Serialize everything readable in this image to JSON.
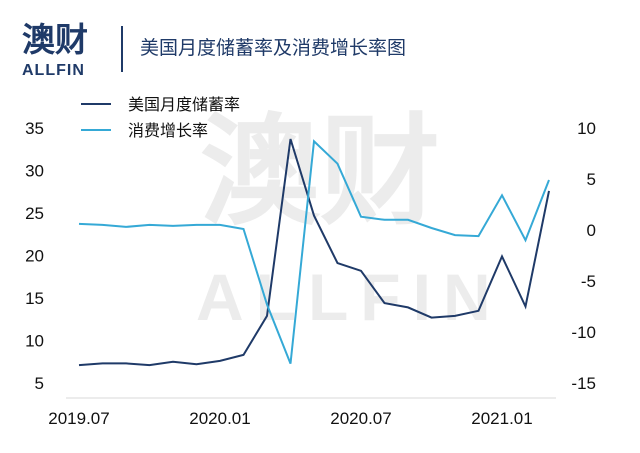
{
  "header": {
    "logo_cn": "澳财",
    "logo_en": "ALLFIN",
    "title": "美国月度储蓄率及消费增长率图"
  },
  "watermark": {
    "cn": "澳财",
    "en": "ALLFIN"
  },
  "colors": {
    "brand": "#1f3a68",
    "savings": "#1f3a68",
    "consumption": "#35a9d6",
    "grid": "#d9d9d9"
  },
  "chart_data": {
    "type": "line",
    "x": [
      "2019.07",
      "2019.08",
      "2019.09",
      "2019.10",
      "2019.11",
      "2019.12",
      "2020.01",
      "2020.02",
      "2020.03",
      "2020.04",
      "2020.05",
      "2020.06",
      "2020.07",
      "2020.08",
      "2020.09",
      "2020.10",
      "2020.11",
      "2020.12",
      "2021.01",
      "2021.02",
      "2021.03"
    ],
    "x_tick_labels": [
      "2019.07",
      "2020.01",
      "2020.07",
      "2021.01"
    ],
    "series": [
      {
        "name": "美国月度储蓄率",
        "axis": "left",
        "color": "#1f3a68",
        "values": [
          7.1,
          7.3,
          7.3,
          7.1,
          7.5,
          7.2,
          7.6,
          8.3,
          12.9,
          33.7,
          24.7,
          19.1,
          18.2,
          14.4,
          13.9,
          12.7,
          12.9,
          13.5,
          19.9,
          14.0,
          27.6
        ]
      },
      {
        "name": "消费增长率",
        "axis": "right",
        "color": "#35a9d6",
        "values": [
          0.6,
          0.5,
          0.3,
          0.5,
          0.4,
          0.5,
          0.5,
          0.1,
          -7.3,
          -13.1,
          8.7,
          6.5,
          1.3,
          1.0,
          1.0,
          0.2,
          -0.5,
          -0.6,
          3.4,
          -1.0,
          4.9
        ]
      }
    ],
    "y_left": {
      "ticks": [
        5,
        10,
        15,
        20,
        25,
        30,
        35
      ],
      "ylim": [
        5,
        35
      ]
    },
    "y_right": {
      "ticks": [
        -15,
        -10,
        -5,
        0,
        5,
        10
      ],
      "ylim": [
        -15,
        10
      ]
    },
    "grid": false,
    "legend_position": "top-left"
  }
}
